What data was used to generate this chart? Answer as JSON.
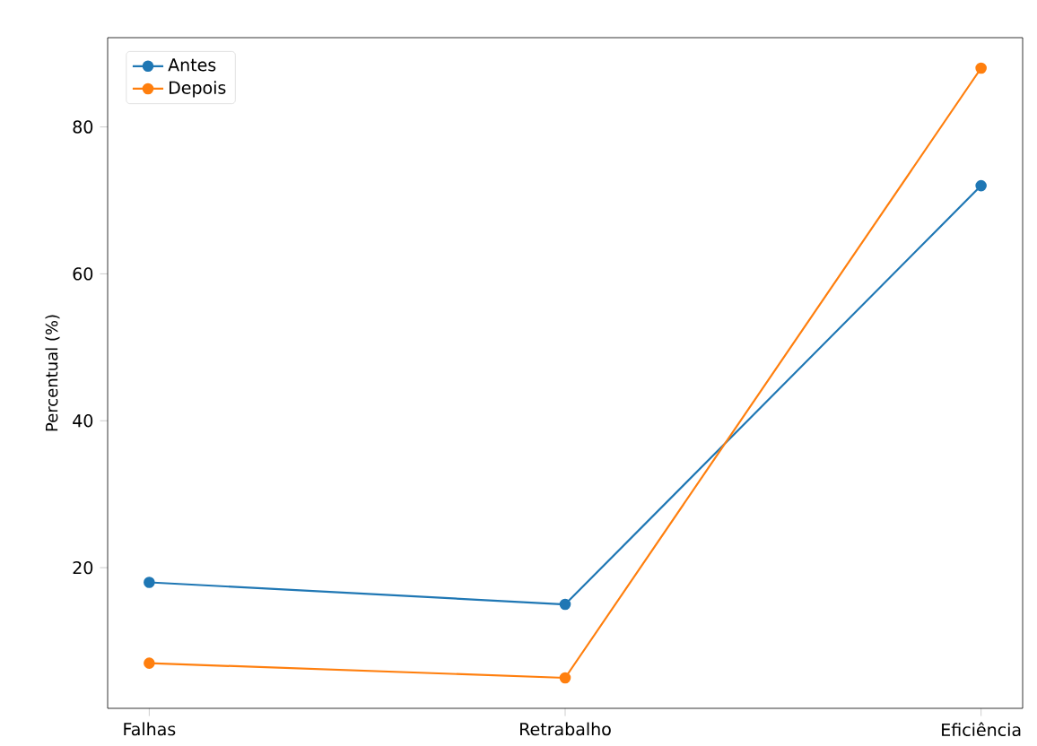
{
  "chart_data": {
    "type": "line",
    "ylabel": "Percentual (%)",
    "categories": [
      "Falhas",
      "Retrabalho",
      "Eficiência"
    ],
    "series": [
      {
        "name": "Antes",
        "color": "#1f77b4",
        "values": [
          18,
          15,
          72
        ]
      },
      {
        "name": "Depois",
        "color": "#ff7f0e",
        "values": [
          7,
          5,
          88
        ]
      }
    ],
    "ylim": [
      0.85,
      92.15
    ],
    "yticks": [
      20,
      40,
      60,
      80
    ],
    "legend": "top left",
    "marker": "circle",
    "line_style": "solid",
    "grid": false
  }
}
